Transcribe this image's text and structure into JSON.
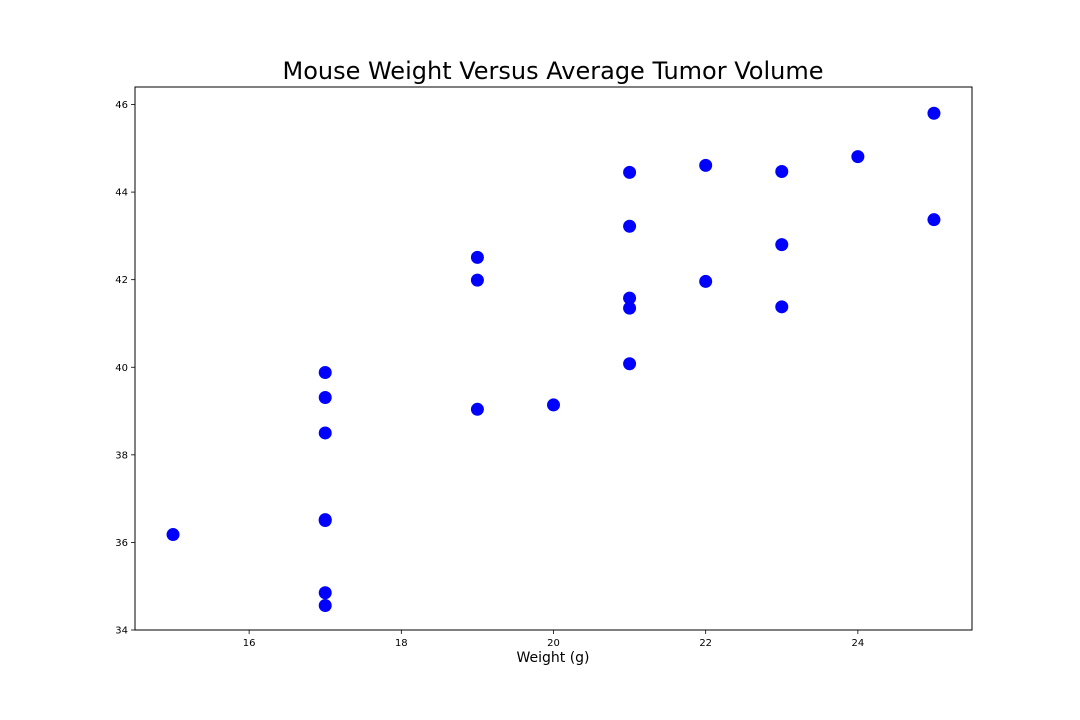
{
  "chart_data": {
    "type": "scatter",
    "title": "Mouse Weight Versus Average Tumor Volume",
    "xlabel": "Weight (g)",
    "ylabel": "",
    "xlim": [
      14.5,
      25.5
    ],
    "ylim": [
      34.0,
      46.4
    ],
    "xticks": [
      16,
      18,
      20,
      22,
      24
    ],
    "yticks": [
      34,
      36,
      38,
      40,
      42,
      44,
      46
    ],
    "grid": false,
    "marker_color": "#0000ff",
    "points": [
      {
        "x": 15,
        "y": 36.18
      },
      {
        "x": 17,
        "y": 39.88
      },
      {
        "x": 17,
        "y": 39.31
      },
      {
        "x": 17,
        "y": 38.5
      },
      {
        "x": 17,
        "y": 36.52
      },
      {
        "x": 17,
        "y": 36.5
      },
      {
        "x": 17,
        "y": 34.85
      },
      {
        "x": 17,
        "y": 34.56
      },
      {
        "x": 19,
        "y": 42.51
      },
      {
        "x": 19,
        "y": 41.99
      },
      {
        "x": 19,
        "y": 39.04
      },
      {
        "x": 20,
        "y": 39.14
      },
      {
        "x": 21,
        "y": 44.45
      },
      {
        "x": 21,
        "y": 43.22
      },
      {
        "x": 21,
        "y": 41.58
      },
      {
        "x": 21,
        "y": 41.35
      },
      {
        "x": 21,
        "y": 40.08
      },
      {
        "x": 22,
        "y": 44.61
      },
      {
        "x": 22,
        "y": 41.96
      },
      {
        "x": 23,
        "y": 44.47
      },
      {
        "x": 23,
        "y": 42.8
      },
      {
        "x": 23,
        "y": 41.38
      },
      {
        "x": 24,
        "y": 44.81
      },
      {
        "x": 25,
        "y": 45.8
      },
      {
        "x": 25,
        "y": 43.37
      }
    ]
  }
}
